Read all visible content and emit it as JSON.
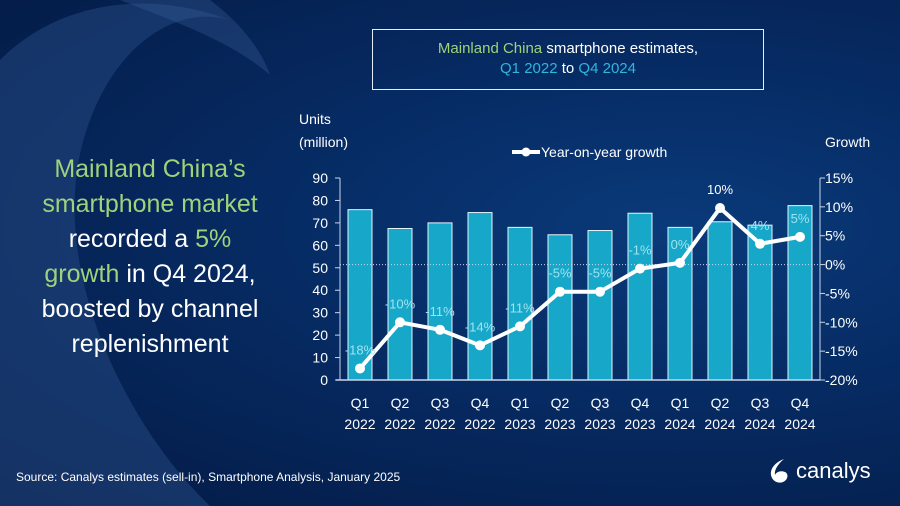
{
  "title": {
    "part1": "Mainland China",
    "part2": " smartphone estimates,",
    "part3": "Q1 2022",
    "part4": " to ",
    "part5": "Q4 2024"
  },
  "headline": {
    "l1": "Mainland China’s",
    "l2": "smartphone market",
    "l3a": "recorded a ",
    "l3b": "5%",
    "l4a": "growth",
    "l4b": " in Q4 2024,",
    "l5": "boosted by channel",
    "l6": "replenishment"
  },
  "source": "Source: Canalys estimates (sell-in), Smartphone Analysis, January 2025",
  "logo": {
    "text": "canalys"
  },
  "colors": {
    "bar": "#17a7c8",
    "line": "#ffffff",
    "green": "#9fd27a",
    "cyan": "#2fb6dc",
    "label": "#9fe3f2"
  },
  "chart_data": {
    "type": "bar+line",
    "ylabel_left": "Units (million)",
    "ylabel_right": "Growth",
    "ylim_left": [
      0,
      90
    ],
    "ylim_right": [
      -20,
      15
    ],
    "yticks_left": [
      "0",
      "10",
      "20",
      "30",
      "40",
      "50",
      "60",
      "70",
      "80",
      "90"
    ],
    "yticks_right": [
      "-20%",
      "-15%",
      "-10%",
      "-5%",
      "0%",
      "5%",
      "10%",
      "15%"
    ],
    "categories": [
      [
        "Q1",
        "2022"
      ],
      [
        "Q2",
        "2022"
      ],
      [
        "Q3",
        "2022"
      ],
      [
        "Q4",
        "2022"
      ],
      [
        "Q1",
        "2023"
      ],
      [
        "Q2",
        "2023"
      ],
      [
        "Q3",
        "2023"
      ],
      [
        "Q4",
        "2023"
      ],
      [
        "Q1",
        "2024"
      ],
      [
        "Q2",
        "2024"
      ],
      [
        "Q3",
        "2024"
      ],
      [
        "Q4",
        "2024"
      ]
    ],
    "series": [
      {
        "type": "bar",
        "axis": "left",
        "values": [
          75.9,
          67.5,
          70.0,
          74.6,
          68.0,
          64.7,
          66.6,
          74.3,
          68.0,
          70.5,
          69.0,
          77.7
        ]
      },
      {
        "type": "line",
        "axis": "right",
        "name": "Year-on-year growth",
        "values": [
          -18,
          -10,
          -11.3,
          -14,
          -10.7,
          -4.7,
          -4.7,
          -0.7,
          0.3,
          9.8,
          3.6,
          4.8
        ],
        "labels": [
          "-18%",
          "-10%",
          "-11%",
          "-14%",
          "-11%",
          "-5%",
          "-5%",
          "-1%",
          "0%",
          "10%",
          "4%",
          "5%"
        ]
      }
    ],
    "legend": "top-center",
    "reference_line": "0% dotted"
  }
}
